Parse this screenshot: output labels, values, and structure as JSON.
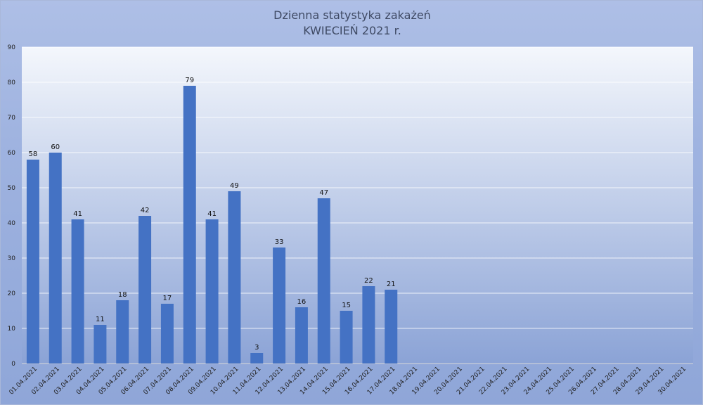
{
  "chart_data": {
    "type": "bar",
    "title": "Dzienna statystyka zakażeń",
    "subtitle": "KWIECIEŃ 2021 r.",
    "xlabel": "",
    "ylabel": "",
    "ylim": [
      0,
      90
    ],
    "yticks": [
      0,
      10,
      20,
      30,
      40,
      50,
      60,
      70,
      80,
      90
    ],
    "grid": true,
    "legend": "none",
    "bar_color": "#4472c4",
    "categories": [
      "01.04.2021",
      "02.04.2021",
      "03.04.2021",
      "04.04.2021",
      "05.04.2021",
      "06.04.2021",
      "07.04.2021",
      "08.04.2021",
      "09.04.2021",
      "10.04.2021",
      "11.04.2021",
      "12.04.2021",
      "13.04.2021",
      "14.04.2021",
      "15.04.2021",
      "16.04.2021",
      "17.04.2021",
      "18.04.2021",
      "19.04.2021",
      "20.04.2021",
      "21.04.2021",
      "22.04.2021",
      "23.04.2021",
      "24.04.2021",
      "25.04.2021",
      "26.04.2021",
      "27.04.2021",
      "28.04.2021",
      "29.04.2021",
      "30.04.2021"
    ],
    "values": [
      58,
      60,
      41,
      11,
      18,
      42,
      17,
      79,
      41,
      49,
      3,
      33,
      16,
      47,
      15,
      22,
      21,
      null,
      null,
      null,
      null,
      null,
      null,
      null,
      null,
      null,
      null,
      null,
      null,
      null
    ]
  }
}
